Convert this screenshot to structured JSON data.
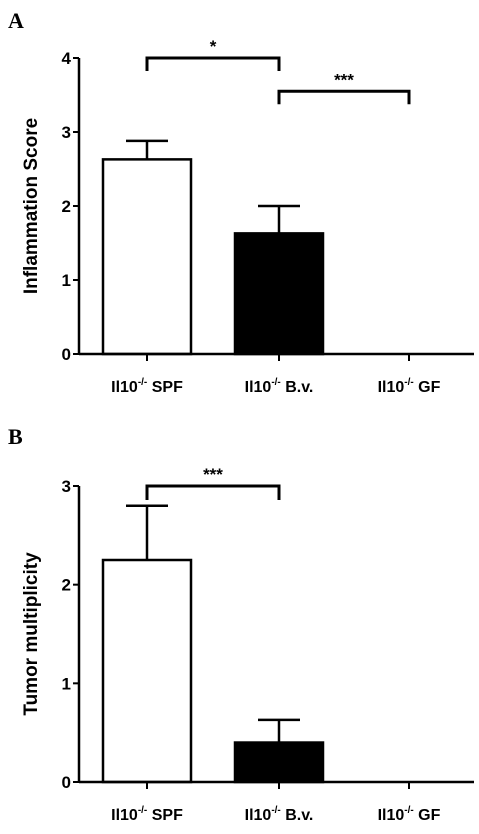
{
  "colors": {
    "axis": "#000000",
    "white_bar": "#ffffff",
    "black_bar": "#000000"
  },
  "chart_data": [
    {
      "panel": "A",
      "type": "bar",
      "ylabel": "Inflammation Score",
      "ylim": [
        0,
        4
      ],
      "yticks": [
        "0",
        "1",
        "2",
        "3",
        "4"
      ],
      "grid": false,
      "categories": [
        {
          "base": "Il10",
          "sup": "-/-",
          "suffix": " SPF"
        },
        {
          "base": "Il10",
          "sup": "-/-",
          "suffix": " B.v."
        },
        {
          "base": "Il10",
          "sup": "-/-",
          "suffix": " GF"
        }
      ],
      "values": [
        2.63,
        1.63,
        0
      ],
      "errors": [
        0.25,
        0.37,
        0
      ],
      "bar_fill": [
        "white",
        "black",
        "white"
      ],
      "significance": [
        {
          "from": 0,
          "to": 1,
          "label": "*",
          "level": 4.0
        },
        {
          "from": 1,
          "to": 2,
          "label": "***",
          "level": 3.55
        }
      ]
    },
    {
      "panel": "B",
      "type": "bar",
      "ylabel": "Tumor multiplicity",
      "ylim": [
        0,
        3
      ],
      "yticks": [
        "0",
        "1",
        "2",
        "3"
      ],
      "grid": false,
      "categories": [
        {
          "base": "Il10",
          "sup": "-/-",
          "suffix": " SPF"
        },
        {
          "base": "Il10",
          "sup": "-/-",
          "suffix": " B.v."
        },
        {
          "base": "Il10",
          "sup": "-/-",
          "suffix": " GF"
        }
      ],
      "values": [
        2.25,
        0.4,
        0
      ],
      "errors": [
        0.55,
        0.23,
        0
      ],
      "bar_fill": [
        "white",
        "black",
        "white"
      ],
      "significance": [
        {
          "from": 0,
          "to": 1,
          "label": "***",
          "level": 3.0
        }
      ]
    }
  ]
}
